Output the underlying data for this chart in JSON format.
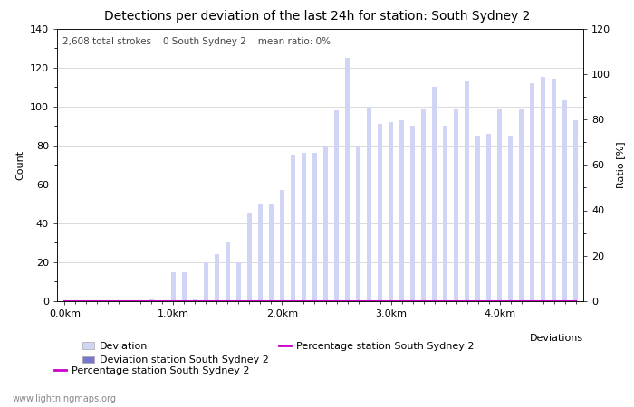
{
  "title": "Detections per deviation of the last 24h for station: South Sydney 2",
  "subtitle": "2,608 total strokes    0 South Sydney 2    mean ratio: 0%",
  "xlabel": "Deviations",
  "ylabel_left": "Count",
  "ylabel_right": "Ratio [%]",
  "x_tick_labels": [
    "0.0km",
    "1.0km",
    "2.0km",
    "3.0km",
    "4.0km"
  ],
  "x_tick_positions": [
    0,
    10,
    20,
    30,
    40
  ],
  "ylim_left": [
    0,
    140
  ],
  "ylim_right": [
    0,
    120
  ],
  "yticks_left": [
    0,
    20,
    40,
    60,
    80,
    100,
    120,
    140
  ],
  "yticks_right": [
    0,
    20,
    40,
    60,
    80,
    100,
    120
  ],
  "bar_color": "#d0d4f5",
  "bar_color2": "#7777cc",
  "line_color": "#cc00cc",
  "background_color": "#ffffff",
  "grid_color": "#cccccc",
  "watermark": "www.lightningmaps.org",
  "n_bars": 48,
  "bar_values": [
    0,
    0,
    0,
    0,
    0,
    0,
    0,
    0,
    1,
    0,
    15,
    15,
    1,
    20,
    24,
    30,
    20,
    45,
    50,
    50,
    57,
    75,
    76,
    76,
    80,
    98,
    125,
    80,
    100,
    91,
    92,
    93,
    90,
    99,
    110,
    90,
    99,
    113,
    85,
    86,
    99,
    85,
    99,
    112,
    115,
    114,
    103,
    93
  ],
  "percentage_values": [
    0,
    0,
    0,
    0,
    0,
    0,
    0,
    0,
    0,
    0,
    0,
    0,
    0,
    0,
    0,
    0,
    0,
    0,
    0,
    0,
    0,
    0,
    0,
    0,
    0,
    0,
    0,
    0,
    0,
    0,
    0,
    0,
    0,
    0,
    0,
    0,
    0,
    0,
    0,
    0,
    0,
    0,
    0,
    0,
    0,
    0,
    0,
    0
  ],
  "title_fontsize": 10,
  "subtitle_fontsize": 7.5,
  "axis_fontsize": 8,
  "tick_fontsize": 8,
  "legend_fontsize": 8
}
